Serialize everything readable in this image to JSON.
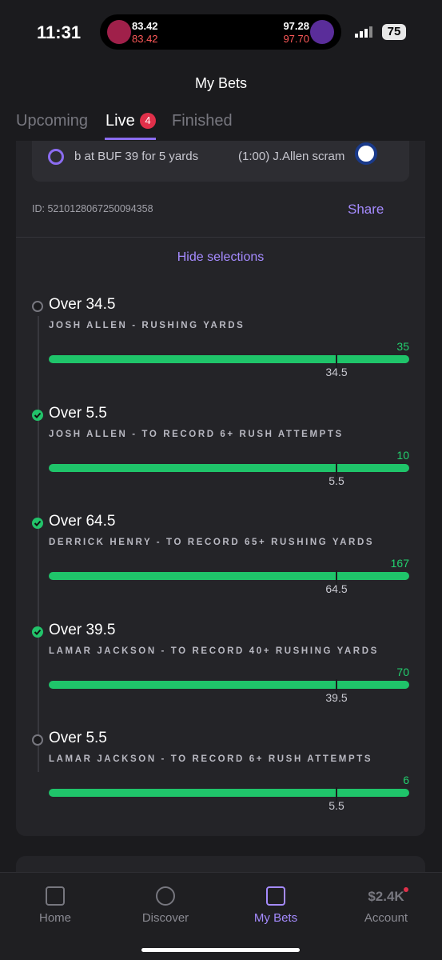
{
  "status_bar": {
    "time": "11:31",
    "battery": "75",
    "live_activity": {
      "left_top": "83.42",
      "left_bottom": "83.42",
      "right_top": "97.28",
      "right_bottom": "97.70"
    }
  },
  "header": {
    "title": "My Bets"
  },
  "tabs": [
    {
      "label": "Upcoming"
    },
    {
      "label": "Live",
      "badge": "4"
    },
    {
      "label": "Finished"
    }
  ],
  "ticker": {
    "left": "b at BUF 39 for 5 yards",
    "right": "(1:00) J.Allen scram"
  },
  "bet": {
    "id": "ID: 5210128067250094358",
    "share": "Share",
    "toggle": "Hide selections",
    "selections": [
      {
        "title": "Over 34.5",
        "subtitle": "JOSH ALLEN - RUSHING YARDS",
        "result": 35,
        "line": 34.5,
        "status": "open"
      },
      {
        "title": "Over 5.5",
        "subtitle": "JOSH ALLEN - TO RECORD 6+ RUSH ATTEMPTS",
        "result": 10,
        "line": 5.5,
        "status": "won"
      },
      {
        "title": "Over 64.5",
        "subtitle": "DERRICK HENRY - TO RECORD 65+ RUSHING YARDS",
        "result": 167,
        "line": 64.5,
        "status": "won"
      },
      {
        "title": "Over 39.5",
        "subtitle": "LAMAR JACKSON - TO RECORD 40+ RUSHING YARDS",
        "result": 70,
        "line": 39.5,
        "status": "won"
      },
      {
        "title": "Over 5.5",
        "subtitle": "LAMAR JACKSON - TO RECORD 6+ RUSH ATTEMPTS",
        "result": 6,
        "line": 5.5,
        "status": "open"
      }
    ]
  },
  "nav": [
    {
      "label": "Home"
    },
    {
      "label": "Discover"
    },
    {
      "label": "My Bets",
      "icon": ""
    },
    {
      "label": "Account",
      "icon": "$2.4K"
    }
  ]
}
